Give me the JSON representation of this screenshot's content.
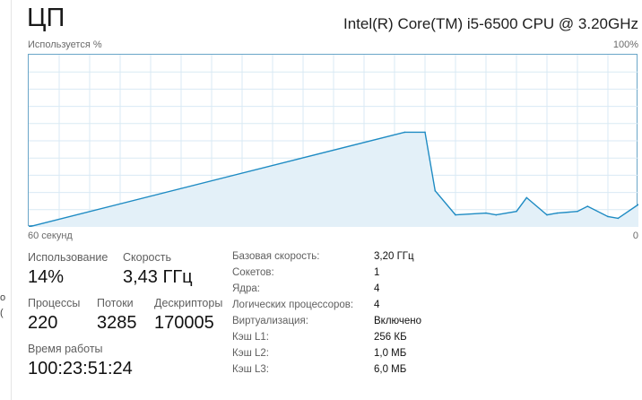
{
  "title": "ЦП",
  "cpu_name": "Intel(R) Core(TM) i5-6500 CPU @ 3.20GHz",
  "graph": {
    "y_label": "Используется %",
    "y_max_label": "100%",
    "x_left_label": "60 секунд",
    "x_right_label": "0"
  },
  "stats": {
    "utilization": {
      "label": "Использование",
      "value": "14%"
    },
    "speed": {
      "label": "Скорость",
      "value": "3,43 ГГц"
    },
    "processes": {
      "label": "Процессы",
      "value": "220"
    },
    "threads": {
      "label": "Потоки",
      "value": "3285"
    },
    "handles": {
      "label": "Дескрипторы",
      "value": "170005"
    },
    "uptime": {
      "label": "Время работы",
      "value": "100:23:51:24"
    }
  },
  "specs": [
    {
      "label": "Базовая скорость:",
      "value": "3,20 ГГц"
    },
    {
      "label": "Сокетов:",
      "value": "1"
    },
    {
      "label": "Ядра:",
      "value": "4"
    },
    {
      "label": "Логических процессоров:",
      "value": "4"
    },
    {
      "label": "Виртуализация:",
      "value": "Включено"
    },
    {
      "label": "Кэш L1:",
      "value": "256 КБ"
    },
    {
      "label": "Кэш L2:",
      "value": "1,0 МБ"
    },
    {
      "label": "Кэш L3:",
      "value": "6,0 МБ"
    }
  ],
  "chart_data": {
    "type": "area",
    "ylim": [
      0,
      100
    ],
    "xlim": [
      60,
      0
    ],
    "grid": true,
    "line_color": "#1e8bc3",
    "fill_color": "#e3f0f8",
    "x": [
      60,
      23,
      21,
      20,
      18,
      15,
      14,
      12,
      11,
      9,
      8,
      6,
      5,
      3,
      2,
      0
    ],
    "values": [
      0,
      55,
      55,
      21,
      7,
      8,
      7,
      9,
      17,
      7,
      8,
      9,
      12,
      6,
      5,
      13
    ]
  }
}
